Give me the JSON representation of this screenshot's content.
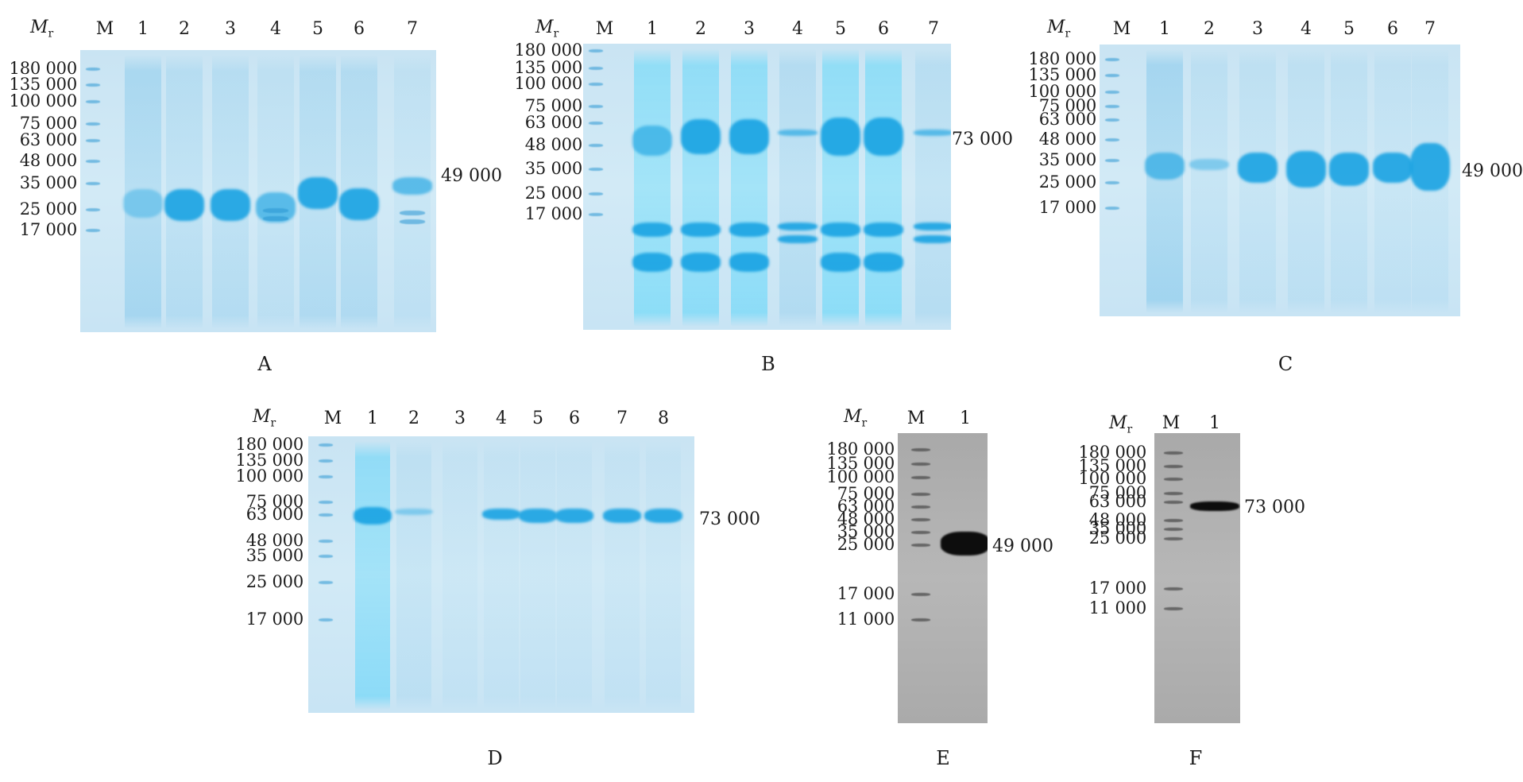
{
  "mr_label": "M",
  "mr_sub": "r",
  "panels": [
    {
      "id": "A",
      "label": "A",
      "lanes": [
        "M",
        "1",
        "2",
        "3",
        "4",
        "5",
        "6",
        "7"
      ],
      "mw": [
        "180 000",
        "135 000",
        "100 000",
        "75 000",
        "63 000",
        "48 000",
        "35 000",
        "25 000",
        "17 000"
      ],
      "side": "49 000"
    },
    {
      "id": "B",
      "label": "B",
      "lanes": [
        "M",
        "1",
        "2",
        "3",
        "4",
        "5",
        "6",
        "7"
      ],
      "mw": [
        "180 000",
        "135 000",
        "100 000",
        "75 000",
        "63 000",
        "48 000",
        "35 000",
        "25 000",
        "17 000"
      ],
      "side": "73 000"
    },
    {
      "id": "C",
      "label": "C",
      "lanes": [
        "M",
        "1",
        "2",
        "3",
        "4",
        "5",
        "6",
        "7"
      ],
      "mw": [
        "180 000",
        "135 000",
        "100 000",
        "75 000",
        "63 000",
        "48 000",
        "35 000",
        "25 000",
        "17 000"
      ],
      "side": "49 000"
    },
    {
      "id": "D",
      "label": "D",
      "lanes": [
        "M",
        "1",
        "2",
        "3",
        "4",
        "5",
        "6",
        "7",
        "8"
      ],
      "mw": [
        "180 000",
        "135 000",
        "100 000",
        "75 000",
        "63 000",
        "48 000",
        "35 000",
        "25 000",
        "17 000"
      ],
      "side": "73 000"
    },
    {
      "id": "E",
      "label": "E",
      "lanes": [
        "M",
        "1"
      ],
      "mw": [
        "180 000",
        "135 000",
        "100 000",
        "75 000",
        "63 000",
        "48 000",
        "35 000",
        "25 000",
        "17 000",
        "11 000"
      ],
      "side": "49 000"
    },
    {
      "id": "F",
      "label": "F",
      "lanes": [
        "M",
        "1"
      ],
      "mw": [
        "180 000",
        "135 000",
        "100 000",
        "75 000",
        "63 000",
        "48 000",
        "35 000",
        "25 000",
        "17 000",
        "11 000"
      ],
      "side": "73 000"
    }
  ]
}
